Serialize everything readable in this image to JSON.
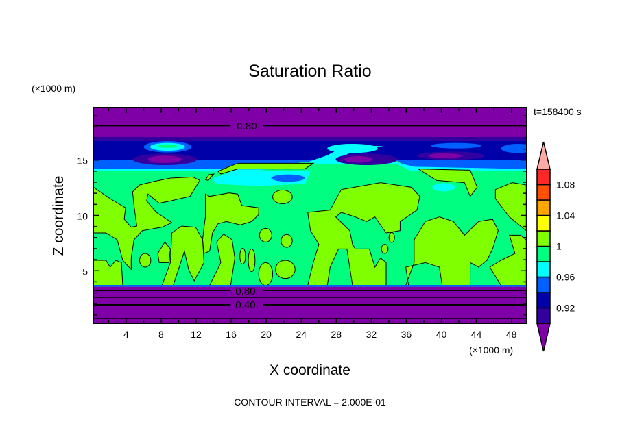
{
  "chart_data": {
    "type": "heatmap",
    "subtype": "filled-contour",
    "title": "Saturation Ratio",
    "xlabel": "X coordinate",
    "ylabel": "Z coordinate",
    "x_units": "(×1000 m)",
    "y_units": "(×1000 m)",
    "xlim": [
      0.25,
      49.75
    ],
    "ylim": [
      0.25,
      19.75
    ],
    "xticks": [
      4,
      8,
      12,
      16,
      20,
      24,
      28,
      32,
      36,
      40,
      44,
      48
    ],
    "yticks": [
      5,
      10,
      15
    ],
    "x_minor_step": 2,
    "y_minor_step": 1,
    "time_label": "t=158400 s",
    "footer": "CONTOUR INTERVAL = 2.000E-01",
    "contour_labels": [
      "0.80",
      "0.80",
      "0.40"
    ],
    "colorbar": {
      "levels": [
        0.9,
        0.92,
        0.94,
        0.96,
        0.98,
        1.0,
        1.02,
        1.04,
        1.06,
        1.08,
        1.1
      ],
      "tick_labels": [
        "0.92",
        "0.96",
        "1",
        "1.04",
        "1.08"
      ],
      "tick_values": [
        0.92,
        0.96,
        1.0,
        1.04,
        1.08
      ],
      "colors": [
        "#3300a0",
        "#0000a8",
        "#0060ff",
        "#00ffff",
        "#00ff80",
        "#80ff00",
        "#ffff00",
        "#ffa500",
        "#ff5000",
        "#ff2828"
      ],
      "under_color": "#8000a8",
      "over_color": "#ffa8a8"
    },
    "description_of_field": {
      "upper_layer_min": 0.8,
      "lower_layer_min": 0.4,
      "mid_layer_range": [
        0.98,
        1.02
      ]
    }
  }
}
